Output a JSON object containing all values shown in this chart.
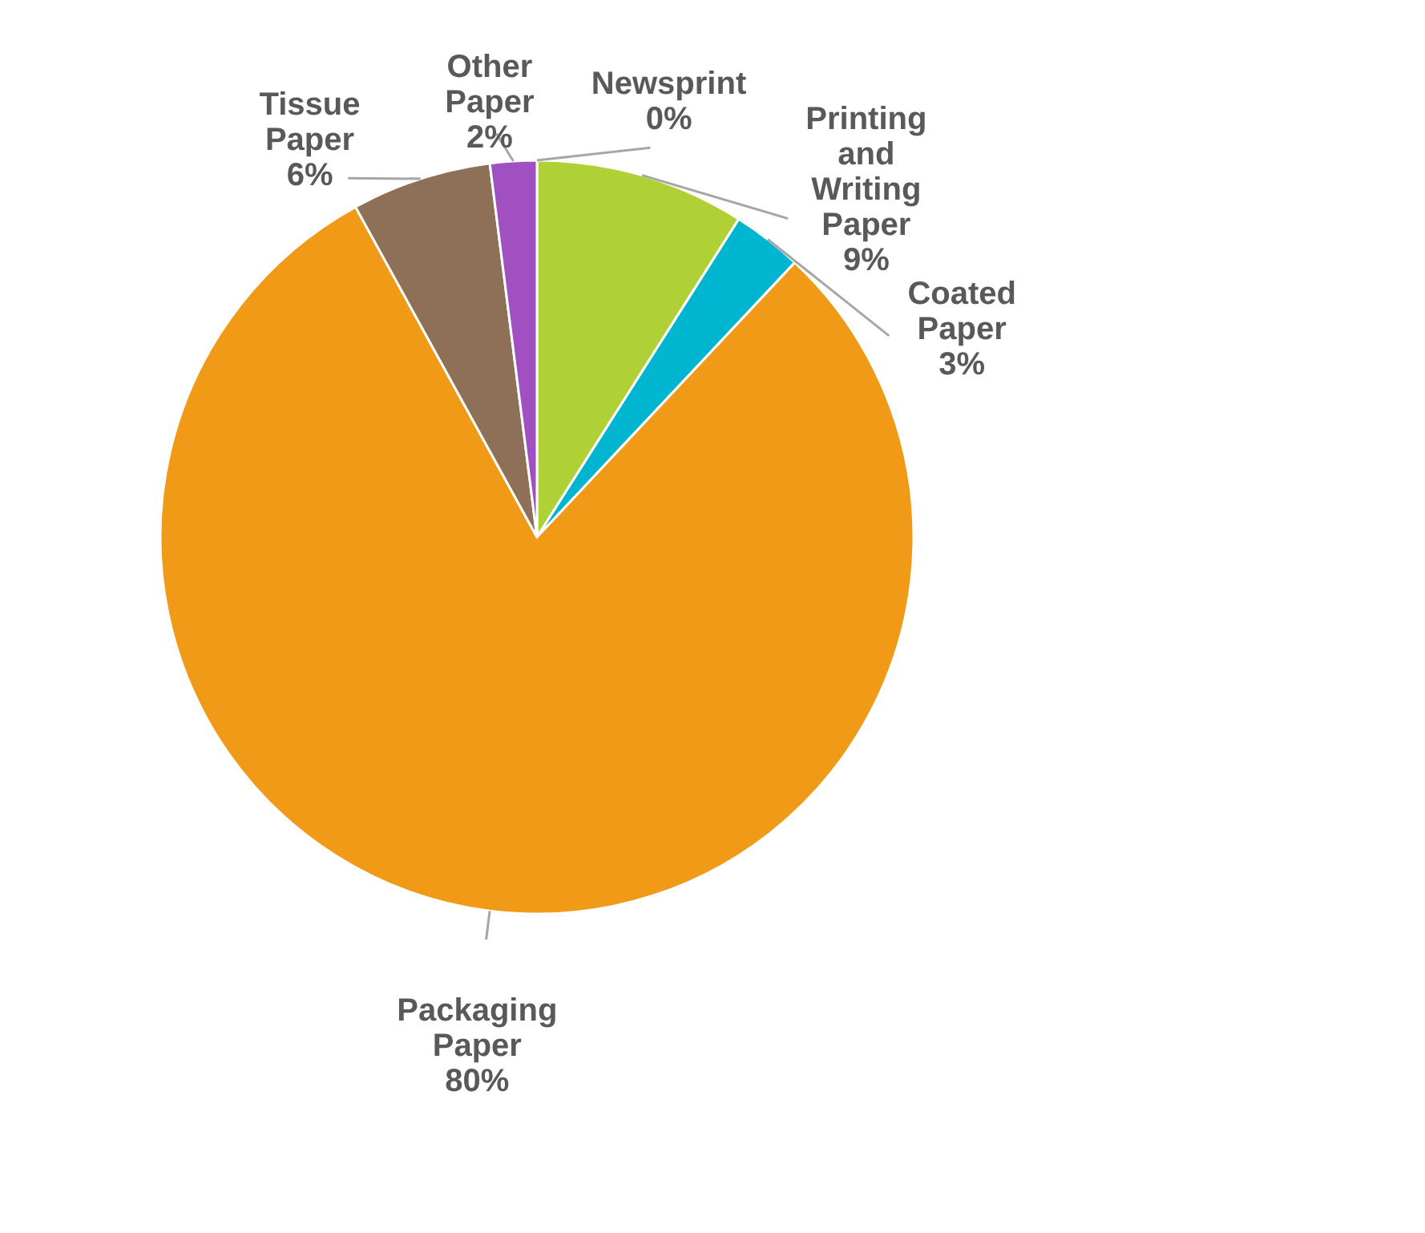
{
  "chart_data": {
    "type": "pie",
    "categories": [
      "Newsprint",
      "Printing and Writing Paper",
      "Coated Paper",
      "Packaging Paper",
      "Tissue Paper",
      "Other Paper"
    ],
    "values": [
      0,
      9,
      3,
      80,
      6,
      2
    ],
    "value_labels": [
      "0%",
      "9%",
      "3%",
      "80%",
      "6%",
      "2%"
    ],
    "colors": [
      "#f08a8a",
      "#b0d136",
      "#00b5d0",
      "#f09a18",
      "#8e7058",
      "#a050c0"
    ],
    "legend": false
  }
}
